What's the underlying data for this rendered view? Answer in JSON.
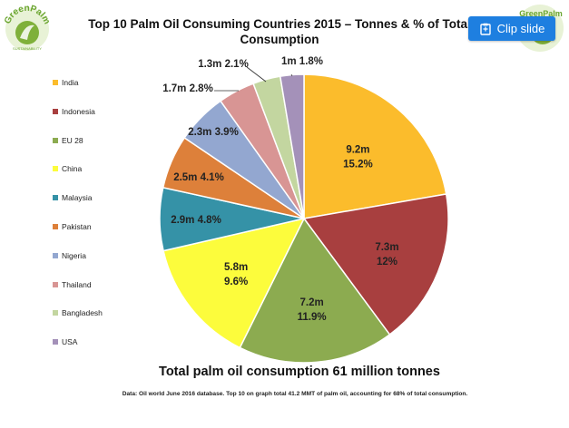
{
  "header": {
    "title_line1": "Top 10 Palm Oil Consuming Countries 2015 – Tonnes & % of Total",
    "title_line2": "Consumption",
    "clip_label": "Clip slide",
    "logo_text": "GreenPalm",
    "logo_subtext": "SUSTAINABILITY"
  },
  "chart_data": {
    "type": "pie",
    "title": "Top 10 Palm Oil Consuming Countries 2015 – Tonnes & % of Total Consumption",
    "legend_position": "left",
    "slices": [
      {
        "name": "India",
        "tonnes_m": 9.2,
        "percent": 15.2,
        "color": "#fbbc2c",
        "label1": "9.2m",
        "label2": "15.2%"
      },
      {
        "name": "Indonesia",
        "tonnes_m": 7.3,
        "percent": 12,
        "color": "#a83f3f",
        "label1": "7.3m",
        "label2": "12%"
      },
      {
        "name": "EU 28",
        "tonnes_m": 7.2,
        "percent": 11.9,
        "color": "#8cab50",
        "label1": "7.2m",
        "label2": "11.9%"
      },
      {
        "name": "China",
        "tonnes_m": 5.8,
        "percent": 9.6,
        "color": "#fcfc3c",
        "label1": "5.8m",
        "label2": "9.6%"
      },
      {
        "name": "Malaysia",
        "tonnes_m": 2.9,
        "percent": 4.8,
        "color": "#3592a7",
        "label1": "2.9m 4.8%"
      },
      {
        "name": "Pakistan",
        "tonnes_m": 2.5,
        "percent": 4.1,
        "color": "#dd803a",
        "label1": "2.5m 4.1%"
      },
      {
        "name": "Nigeria",
        "tonnes_m": 2.3,
        "percent": 3.9,
        "color": "#93a7d0",
        "label1": "2.3m 3.9%"
      },
      {
        "name": "Thailand",
        "tonnes_m": 1.7,
        "percent": 2.8,
        "color": "#d89594",
        "label1": "1.7m 2.8%"
      },
      {
        "name": "Bangladesh",
        "tonnes_m": 1.3,
        "percent": 2.1,
        "color": "#c3d6a0",
        "label1": "1.3m 2.1%"
      },
      {
        "name": "USA",
        "tonnes_m": 1,
        "percent": 1.8,
        "color": "#a491b9",
        "label1": "1m 1.8%"
      }
    ]
  },
  "total_text": "Total palm oil consumption 61 million tonnes",
  "footnote": "Data: Oil world June 2016 database. Top 10 on graph total 41.2 MMT of palm oil, accounting for 68% of total consumption."
}
